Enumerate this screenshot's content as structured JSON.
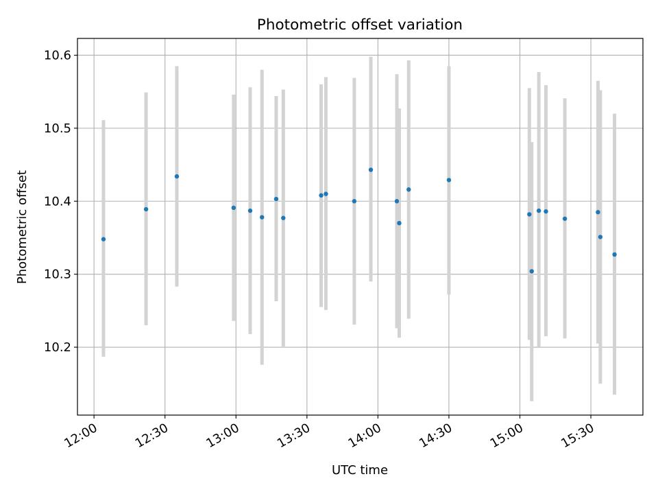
{
  "chart_data": {
    "type": "scatter",
    "title": "Photometric offset variation",
    "xlabel": "UTC time",
    "ylabel": "Photometric offset",
    "x_axis_type": "time",
    "xlim": [
      "11:53",
      "15:52"
    ],
    "ylim": [
      10.107,
      10.623
    ],
    "x_ticks": [
      "12:00",
      "12:30",
      "13:00",
      "13:30",
      "14:00",
      "14:30",
      "15:00",
      "15:30"
    ],
    "y_ticks": [
      10.2,
      10.3,
      10.4,
      10.5,
      10.6
    ],
    "y_tick_labels": [
      "10.2",
      "10.3",
      "10.4",
      "10.5",
      "10.6"
    ],
    "grid": true,
    "marker_color": "#1f77b4",
    "errorbar_color": "#d3d3d3",
    "points": [
      {
        "x": "12:04",
        "y": 10.348,
        "err_low": 10.187,
        "err_high": 10.511
      },
      {
        "x": "12:22",
        "y": 10.389,
        "err_low": 10.23,
        "err_high": 10.549
      },
      {
        "x": "12:35",
        "y": 10.434,
        "err_low": 10.283,
        "err_high": 10.585
      },
      {
        "x": "12:59",
        "y": 10.391,
        "err_low": 10.236,
        "err_high": 10.546
      },
      {
        "x": "13:06",
        "y": 10.387,
        "err_low": 10.218,
        "err_high": 10.556
      },
      {
        "x": "13:11",
        "y": 10.378,
        "err_low": 10.176,
        "err_high": 10.58
      },
      {
        "x": "13:17",
        "y": 10.403,
        "err_low": 10.263,
        "err_high": 10.544
      },
      {
        "x": "13:20",
        "y": 10.377,
        "err_low": 10.201,
        "err_high": 10.553
      },
      {
        "x": "13:36",
        "y": 10.408,
        "err_low": 10.255,
        "err_high": 10.56
      },
      {
        "x": "13:38",
        "y": 10.41,
        "err_low": 10.251,
        "err_high": 10.57
      },
      {
        "x": "13:50",
        "y": 10.4,
        "err_low": 10.231,
        "err_high": 10.569
      },
      {
        "x": "13:57",
        "y": 10.443,
        "err_low": 10.29,
        "err_high": 10.598
      },
      {
        "x": "14:08",
        "y": 10.4,
        "err_low": 10.226,
        "err_high": 10.574
      },
      {
        "x": "14:09",
        "y": 10.37,
        "err_low": 10.213,
        "err_high": 10.527
      },
      {
        "x": "14:13",
        "y": 10.416,
        "err_low": 10.239,
        "err_high": 10.593
      },
      {
        "x": "14:30",
        "y": 10.429,
        "err_low": 10.272,
        "err_high": 10.585
      },
      {
        "x": "15:04",
        "y": 10.382,
        "err_low": 10.21,
        "err_high": 10.555
      },
      {
        "x": "15:05",
        "y": 10.304,
        "err_low": 10.126,
        "err_high": 10.481
      },
      {
        "x": "15:08",
        "y": 10.387,
        "err_low": 10.2,
        "err_high": 10.577
      },
      {
        "x": "15:11",
        "y": 10.386,
        "err_low": 10.215,
        "err_high": 10.559
      },
      {
        "x": "15:19",
        "y": 10.376,
        "err_low": 10.212,
        "err_high": 10.541
      },
      {
        "x": "15:33",
        "y": 10.385,
        "err_low": 10.205,
        "err_high": 10.565
      },
      {
        "x": "15:34",
        "y": 10.351,
        "err_low": 10.15,
        "err_high": 10.552
      },
      {
        "x": "15:40",
        "y": 10.327,
        "err_low": 10.135,
        "err_high": 10.52
      }
    ]
  }
}
